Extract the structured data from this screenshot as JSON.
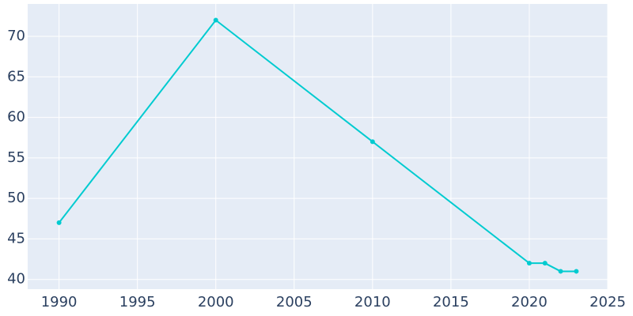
{
  "chart_data": {
    "type": "line",
    "x": [
      1990,
      2000,
      2010,
      2020,
      2021,
      2022,
      2023
    ],
    "series": [
      {
        "color": "#00cbd0",
        "values": [
          47,
          72,
          57,
          42,
          42,
          41,
          41
        ]
      }
    ],
    "xlim": [
      1988,
      2025
    ],
    "xticks": [
      1990,
      1995,
      2000,
      2005,
      2010,
      2015,
      2020,
      2025
    ],
    "ylim": [
      38.8,
      74
    ],
    "yticks": [
      40,
      45,
      50,
      55,
      60,
      65,
      70
    ],
    "grid": true
  }
}
